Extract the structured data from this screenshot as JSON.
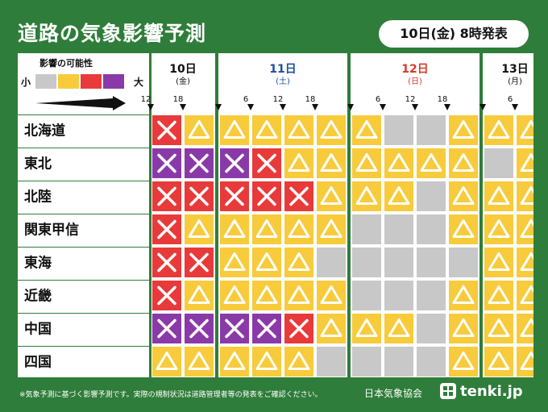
{
  "title": "道路の気象影響予測",
  "issued": "10日(金) 8時発表",
  "legend": {
    "title": "影響の可能性",
    "low_label": "小",
    "high_label": "大",
    "scale": [
      {
        "level": "gray",
        "color": "#c8c8c8"
      },
      {
        "level": "yellow",
        "color": "#f7cb3b"
      },
      {
        "level": "red",
        "color": "#e83a3a"
      },
      {
        "level": "purple",
        "color": "#8a3aa8"
      }
    ]
  },
  "footnote": "※気象予測に基づく影響予測です。実際の規制状況は道路管理者等の発表をご確認ください。",
  "source": "日本気象協会",
  "brand": "tenki.jp",
  "chart_data": {
    "type": "heatmap",
    "title": "道路の気象影響予測",
    "levels": {
      "G": {
        "color": "#c8c8c8",
        "symbol": "none"
      },
      "Y": {
        "color": "#f7cb3b",
        "symbol": "△"
      },
      "R": {
        "color": "#e83a3a",
        "symbol": "×"
      },
      "P": {
        "color": "#8a3aa8",
        "symbol": "×"
      }
    },
    "days": [
      {
        "label": "10日",
        "weekday": "(金)",
        "color": "#111111",
        "columns": 2
      },
      {
        "label": "11日",
        "weekday": "(土)",
        "color": "#1e4fa0",
        "columns": 4
      },
      {
        "label": "12日",
        "weekday": "(日)",
        "color": "#d63a2a",
        "columns": 4
      },
      {
        "label": "13日",
        "weekday": "(月)",
        "color": "#111111",
        "columns": 2
      }
    ],
    "tick_labels": [
      "12",
      "18",
      "",
      "6",
      "12",
      "18",
      "",
      "6",
      "12",
      "18",
      "",
      "6",
      "12"
    ],
    "regions": [
      "北海道",
      "東北",
      "北陸",
      "関東甲信",
      "東海",
      "近畿",
      "中国",
      "四国"
    ],
    "cells": [
      [
        "R",
        "Y",
        "Y",
        "Y",
        "Y",
        "Y",
        "Y",
        "G",
        "G",
        "Y",
        "Y",
        "Y"
      ],
      [
        "P",
        "P",
        "P",
        "R",
        "Y",
        "Y",
        "Y",
        "Y",
        "Y",
        "Y",
        "G",
        "Y"
      ],
      [
        "R",
        "R",
        "R",
        "R",
        "R",
        "Y",
        "Y",
        "Y",
        "G",
        "Y",
        "Y",
        "Y"
      ],
      [
        "R",
        "Y",
        "Y",
        "Y",
        "Y",
        "Y",
        "G",
        "G",
        "G",
        "Y",
        "Y",
        "Y"
      ],
      [
        "R",
        "R",
        "Y",
        "Y",
        "Y",
        "G",
        "G",
        "G",
        "G",
        "G",
        "Y",
        "Y"
      ],
      [
        "R",
        "Y",
        "Y",
        "Y",
        "Y",
        "Y",
        "G",
        "G",
        "G",
        "Y",
        "Y",
        "Y"
      ],
      [
        "P",
        "P",
        "P",
        "P",
        "R",
        "Y",
        "Y",
        "Y",
        "G",
        "Y",
        "Y",
        "Y"
      ],
      [
        "Y",
        "Y",
        "Y",
        "Y",
        "Y",
        "G",
        "G",
        "G",
        "G",
        "Y",
        "Y",
        "Y"
      ]
    ]
  }
}
